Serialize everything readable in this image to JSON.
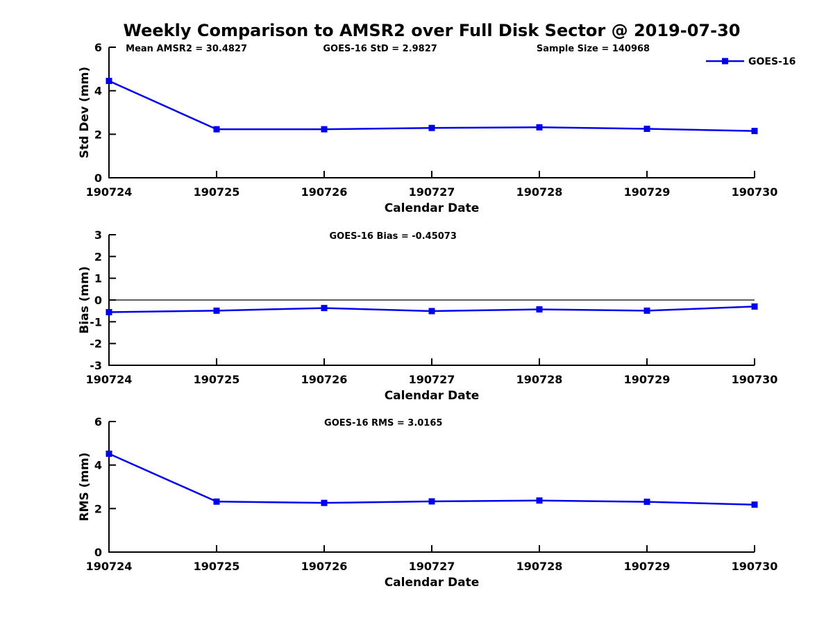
{
  "title": "Weekly Comparison to AMSR2 over Full Disk Sector @ 2019-07-30",
  "colors": {
    "line": "#0000EE",
    "marker": "#0000EE",
    "axis": "#000000",
    "text": "#000000",
    "background": "#FFFFFF"
  },
  "legend": {
    "label": "GOES-16"
  },
  "chart_data": [
    {
      "name": "std-dev",
      "type": "line",
      "title": "",
      "ylabel": "Std Dev (mm)",
      "xlabel": "Calendar Date",
      "ylim": [
        0,
        6
      ],
      "yticks": [
        0,
        2,
        4,
        6
      ],
      "grid": false,
      "zero_line": false,
      "categories": [
        "190724",
        "190725",
        "190726",
        "190727",
        "190728",
        "190729",
        "190730"
      ],
      "series": [
        {
          "name": "GOES-16",
          "color": "#0000EE",
          "values": [
            4.45,
            2.23,
            2.23,
            2.29,
            2.32,
            2.25,
            2.15
          ]
        }
      ],
      "annotations": [
        {
          "text": "Mean AMSR2 = 30.4827",
          "rel_x": 0.12
        },
        {
          "text": "GOES-16 StD = 2.9827",
          "rel_x": 0.42
        },
        {
          "text": "Sample Size = 140968",
          "rel_x": 0.75
        }
      ],
      "legend": {
        "label": "GOES-16",
        "position": "top-right"
      }
    },
    {
      "name": "bias",
      "type": "line",
      "title": "",
      "ylabel": "Bias (mm)",
      "xlabel": "Calendar Date",
      "ylim": [
        -3,
        3
      ],
      "yticks": [
        3,
        2,
        1,
        0,
        -1,
        -2,
        -3
      ],
      "grid": false,
      "zero_line": true,
      "categories": [
        "190724",
        "190725",
        "190726",
        "190727",
        "190728",
        "190729",
        "190730"
      ],
      "series": [
        {
          "name": "GOES-16",
          "color": "#0000EE",
          "values": [
            -0.56,
            -0.49,
            -0.37,
            -0.51,
            -0.43,
            -0.49,
            -0.3
          ]
        }
      ],
      "annotations": [
        {
          "text": "GOES-16 Bias  = -0.45073",
          "rel_x": 0.44
        }
      ],
      "legend": null
    },
    {
      "name": "rms",
      "type": "line",
      "title": "",
      "ylabel": "RMS (mm)",
      "xlabel": "Calendar Date",
      "ylim": [
        0,
        6
      ],
      "yticks": [
        0,
        2,
        4,
        6
      ],
      "grid": false,
      "zero_line": false,
      "categories": [
        "190724",
        "190725",
        "190726",
        "190727",
        "190728",
        "190729",
        "190730"
      ],
      "series": [
        {
          "name": "GOES-16",
          "color": "#0000EE",
          "values": [
            4.52,
            2.32,
            2.26,
            2.33,
            2.37,
            2.31,
            2.18
          ]
        }
      ],
      "annotations": [
        {
          "text": "GOES-16 RMS = 3.0165",
          "rel_x": 0.425
        }
      ],
      "legend": null
    }
  ]
}
